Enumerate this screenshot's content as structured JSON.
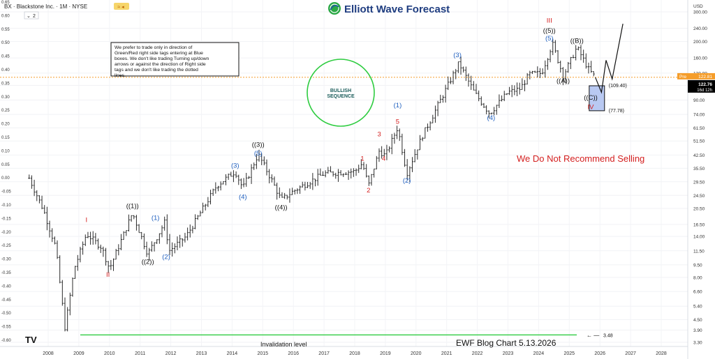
{
  "header": {
    "symbol_line": "BX · Blackstone Inc. · 1M · NYSE",
    "badge": "2",
    "brand": "Elliott Wave Forecast"
  },
  "note_box": "We prefer to trade only in direction of Green/Red right side tags entering at Blue boxes. We don't like trading Turning up/down arrows or against the direction of Right side tags and we don't like trading the dotted lines.",
  "bullish_circle": {
    "line1": "BULLISH",
    "line2": "SEQUENCE"
  },
  "recommendation": "We Do Not Recommend Selling",
  "footer": {
    "invalidation": "Invalidation level",
    "blog": "EWF Blog Chart 5.13.2026"
  },
  "colors": {
    "bar": "#2b2b2b",
    "blue_label": "#1f5fbf",
    "red_label": "#d42020",
    "black_label": "#111111",
    "green": "#2ecc40",
    "box_fill": "#b9c9f2",
    "price_tag": "#f59d2a",
    "current_tag": "#000000",
    "recommend": "#d42020"
  },
  "chart_data": {
    "type": "candlestick",
    "interval": "1M",
    "x_ticks": [
      "2008",
      "2009",
      "2010",
      "2011",
      "2012",
      "2013",
      "2014",
      "2015",
      "2016",
      "2017",
      "2018",
      "2019",
      "2020",
      "2021",
      "2022",
      "2023",
      "2024",
      "2025",
      "2026",
      "2027",
      "2028"
    ],
    "left_axis_ticks": [
      "0.65",
      "0.60",
      "0.55",
      "0.50",
      "0.45",
      "0.40",
      "0.35",
      "0.30",
      "0.25",
      "0.20",
      "0.15",
      "0.10",
      "0.05",
      "0.00",
      "-0.05",
      "-0.10",
      "-0.15",
      "-0.20",
      "-0.25",
      "-0.30",
      "-0.35",
      "-0.40",
      "-0.45",
      "-0.50",
      "-0.55",
      "-0.60"
    ],
    "right_axis_unit": "USD",
    "right_axis_ticks": [
      "300.00",
      "240.00",
      "200.00",
      "160.00",
      "130.00",
      "110.00",
      "90.00",
      "74.00",
      "61.50",
      "51.50",
      "42.50",
      "35.50",
      "29.50",
      "24.50",
      "20.50",
      "16.50",
      "14.00",
      "11.50",
      "9.50",
      "8.00",
      "6.60",
      "5.40",
      "4.50",
      "3.90",
      "3.30"
    ],
    "log_scale": true,
    "price_path": [
      {
        "x": 2007.88,
        "y": 31.0
      },
      {
        "x": 2008.35,
        "y": 20.0
      },
      {
        "x": 2008.75,
        "y": 12.0
      },
      {
        "x": 2009.05,
        "y": 4.0
      },
      {
        "x": 2009.35,
        "y": 9.0
      },
      {
        "x": 2009.75,
        "y": 14.5
      },
      {
        "x": 2010.25,
        "y": 12.0
      },
      {
        "x": 2010.5,
        "y": 9.0
      },
      {
        "x": 2011.25,
        "y": 19.3
      },
      {
        "x": 2011.75,
        "y": 11.0
      },
      {
        "x": 2012.15,
        "y": 15.0
      },
      {
        "x": 2012.3,
        "y": 17.0
      },
      {
        "x": 2012.45,
        "y": 11.5
      },
      {
        "x": 2013.0,
        "y": 14.0
      },
      {
        "x": 2014.0,
        "y": 28.0
      },
      {
        "x": 2014.6,
        "y": 34.0
      },
      {
        "x": 2014.85,
        "y": 27.0
      },
      {
        "x": 2015.35,
        "y": 43.0
      },
      {
        "x": 2015.8,
        "y": 30.0
      },
      {
        "x": 2016.1,
        "y": 23.0
      },
      {
        "x": 2016.5,
        "y": 26.0
      },
      {
        "x": 2017.5,
        "y": 33.0
      },
      {
        "x": 2018.5,
        "y": 34.0
      },
      {
        "x": 2018.75,
        "y": 38.0
      },
      {
        "x": 2018.95,
        "y": 28.0
      },
      {
        "x": 2019.3,
        "y": 45.0
      },
      {
        "x": 2019.5,
        "y": 42.0
      },
      {
        "x": 2019.9,
        "y": 62.0
      },
      {
        "x": 2020.2,
        "y": 33.0
      },
      {
        "x": 2020.7,
        "y": 55.0
      },
      {
        "x": 2021.0,
        "y": 70.0
      },
      {
        "x": 2021.9,
        "y": 149.0
      },
      {
        "x": 2022.4,
        "y": 100.0
      },
      {
        "x": 2022.9,
        "y": 75.0
      },
      {
        "x": 2023.5,
        "y": 100.0
      },
      {
        "x": 2023.9,
        "y": 105.0
      },
      {
        "x": 2024.2,
        "y": 128.0
      },
      {
        "x": 2024.6,
        "y": 130.0
      },
      {
        "x": 2024.95,
        "y": 195.0
      },
      {
        "x": 2025.3,
        "y": 125.0
      },
      {
        "x": 2025.75,
        "y": 185.0
      },
      {
        "x": 2026.15,
        "y": 135.0
      },
      {
        "x": 2026.35,
        "y": 122.76
      }
    ],
    "projection": [
      {
        "x": 2026.35,
        "y": 122.76
      },
      {
        "x": 2026.55,
        "y": 100.0
      },
      {
        "x": 2026.7,
        "y": 155.0
      },
      {
        "x": 2026.9,
        "y": 120.0
      },
      {
        "x": 2027.25,
        "y": 255.0
      }
    ],
    "blue_box": {
      "from_year": 2026.15,
      "to_year": 2026.65,
      "high": 109.4,
      "low": 77.78
    },
    "box_labels": [
      "(109.40)",
      "(77.78)"
    ],
    "price_tags": [
      {
        "label": "Pre",
        "value": "122.81"
      },
      {
        "label": "",
        "value": "122.76",
        "sub": "16d 12h"
      }
    ],
    "invalidation": {
      "value": 3.48,
      "label": "3.48"
    },
    "wave_labels": [
      {
        "text": "I",
        "x": 2009.75,
        "y": 17.5,
        "color": "red"
      },
      {
        "text": "II",
        "x": 2010.45,
        "y": 8.3,
        "color": "red"
      },
      {
        "text": "((1))",
        "x": 2011.25,
        "y": 21.2,
        "color": "black"
      },
      {
        "text": "((2))",
        "x": 2011.75,
        "y": 9.9,
        "color": "black"
      },
      {
        "text": "(1)",
        "x": 2012.0,
        "y": 18.0,
        "color": "blue"
      },
      {
        "text": "(2)",
        "x": 2012.35,
        "y": 10.6,
        "color": "blue"
      },
      {
        "text": "(3)",
        "x": 2014.6,
        "y": 36.8,
        "color": "blue"
      },
      {
        "text": "(4)",
        "x": 2014.85,
        "y": 24.0,
        "color": "blue"
      },
      {
        "text": "((3))",
        "x": 2015.35,
        "y": 49.0,
        "color": "black"
      },
      {
        "text": "(5)",
        "x": 2015.35,
        "y": 43.5,
        "color": "blue"
      },
      {
        "text": "((4))",
        "x": 2016.1,
        "y": 20.8,
        "color": "black"
      },
      {
        "text": "1",
        "x": 2018.75,
        "y": 40.5,
        "color": "red"
      },
      {
        "text": "2",
        "x": 2018.95,
        "y": 26.3,
        "color": "red"
      },
      {
        "text": "3",
        "x": 2019.3,
        "y": 56.5,
        "color": "red"
      },
      {
        "text": "4",
        "x": 2019.45,
        "y": 40.5,
        "color": "red"
      },
      {
        "text": "5",
        "x": 2019.9,
        "y": 67.0,
        "color": "red"
      },
      {
        "text": "(1)",
        "x": 2019.9,
        "y": 84.0,
        "color": "blue"
      },
      {
        "text": "(2)",
        "x": 2020.2,
        "y": 30.0,
        "color": "blue"
      },
      {
        "text": "(3)",
        "x": 2021.85,
        "y": 166.0,
        "color": "blue"
      },
      {
        "text": "(4)",
        "x": 2022.95,
        "y": 70.5,
        "color": "blue"
      },
      {
        "text": "III",
        "x": 2024.85,
        "y": 266.0,
        "color": "red"
      },
      {
        "text": "((5))",
        "x": 2024.85,
        "y": 232.0,
        "color": "black"
      },
      {
        "text": "(5)",
        "x": 2024.85,
        "y": 209.0,
        "color": "blue"
      },
      {
        "text": "((A))",
        "x": 2025.3,
        "y": 117.0,
        "color": "black"
      },
      {
        "text": "((B))",
        "x": 2025.75,
        "y": 202.0,
        "color": "black"
      },
      {
        "text": "((C))",
        "x": 2026.2,
        "y": 93.0,
        "color": "black"
      },
      {
        "text": "IV",
        "x": 2026.2,
        "y": 82.0,
        "color": "red"
      }
    ]
  }
}
